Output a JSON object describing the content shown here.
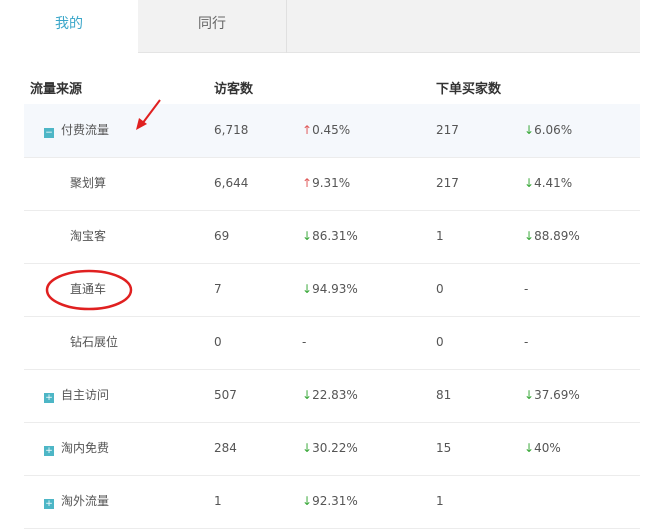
{
  "tabs": [
    {
      "label": "我的",
      "active": true
    },
    {
      "label": "同行",
      "active": false
    }
  ],
  "headers": {
    "source": "流量来源",
    "visitors": "访客数",
    "buyers": "下单买家数"
  },
  "rows": [
    {
      "name": "付费流量",
      "level": 1,
      "expander": "minus",
      "visitors": "6,718",
      "v_change": "0.45%",
      "v_dir": "up",
      "buyers": "217",
      "b_change": "6.06%",
      "b_dir": "down"
    },
    {
      "name": "聚划算",
      "level": 2,
      "visitors": "6,644",
      "v_change": "9.31%",
      "v_dir": "up",
      "buyers": "217",
      "b_change": "4.41%",
      "b_dir": "down"
    },
    {
      "name": "淘宝客",
      "level": 2,
      "visitors": "69",
      "v_change": "86.31%",
      "v_dir": "down",
      "buyers": "1",
      "b_change": "88.89%",
      "b_dir": "down"
    },
    {
      "name": "直通车",
      "level": 2,
      "visitors": "7",
      "v_change": "94.93%",
      "v_dir": "down",
      "buyers": "0",
      "b_change": "-",
      "b_dir": ""
    },
    {
      "name": "钻石展位",
      "level": 2,
      "visitors": "0",
      "v_change": "-",
      "v_dir": "",
      "buyers": "0",
      "b_change": "-",
      "b_dir": ""
    },
    {
      "name": "自主访问",
      "level": 1,
      "expander": "plus",
      "visitors": "507",
      "v_change": "22.83%",
      "v_dir": "down",
      "buyers": "81",
      "b_change": "37.69%",
      "b_dir": "down"
    },
    {
      "name": "淘内免费",
      "level": 1,
      "expander": "plus",
      "visitors": "284",
      "v_change": "30.22%",
      "v_dir": "down",
      "buyers": "15",
      "b_change": "40%",
      "b_dir": "down"
    },
    {
      "name": "淘外流量",
      "level": 1,
      "expander": "plus",
      "visitors": "1",
      "v_change": "92.31%",
      "v_dir": "down",
      "buyers": "1",
      "b_change": "",
      "b_dir": ""
    }
  ],
  "colors": {
    "accent": "#3aa6c9",
    "up": "#e05a5a",
    "down": "#3aa83a",
    "annotation": "#e02020"
  }
}
